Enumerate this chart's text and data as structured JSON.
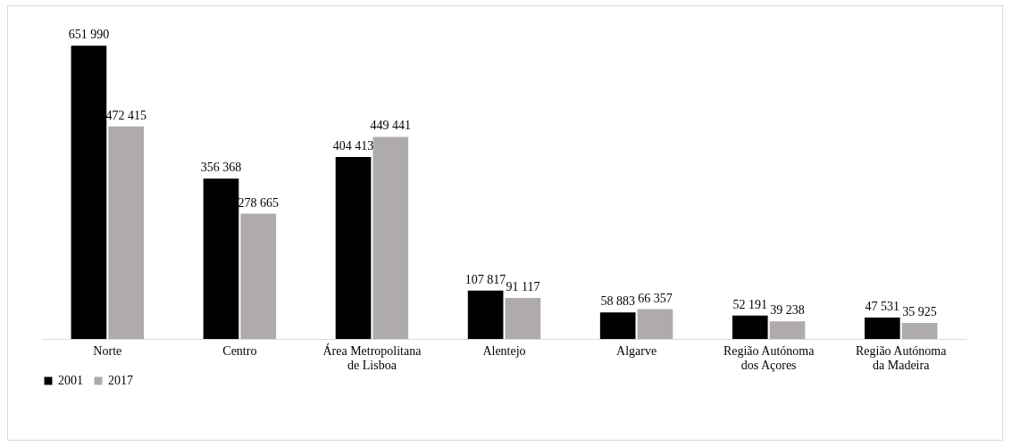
{
  "chart_data": {
    "type": "bar",
    "categories": [
      "Norte",
      "Centro",
      "Área Metropolitana de Lisboa",
      "Alentejo",
      "Algarve",
      "Região Autónoma dos Açores",
      "Região Autónoma da Madeira"
    ],
    "series": [
      {
        "name": "2001",
        "color": "#000000",
        "values": [
          651990,
          356368,
          404413,
          107817,
          58883,
          52191,
          47531
        ],
        "value_labels": [
          "651 990",
          "356 368",
          "404 413",
          "107 817",
          "58 883",
          "52 191",
          "47 531"
        ]
      },
      {
        "name": "2017",
        "color": "#afabab",
        "values": [
          472415,
          278665,
          449441,
          91117,
          66357,
          39238,
          35925
        ],
        "value_labels": [
          "472 415",
          "278 665",
          "449 441",
          "91 117",
          "66 357",
          "39 238",
          "35 925"
        ]
      }
    ],
    "legend": "bottom",
    "grid": false
  }
}
